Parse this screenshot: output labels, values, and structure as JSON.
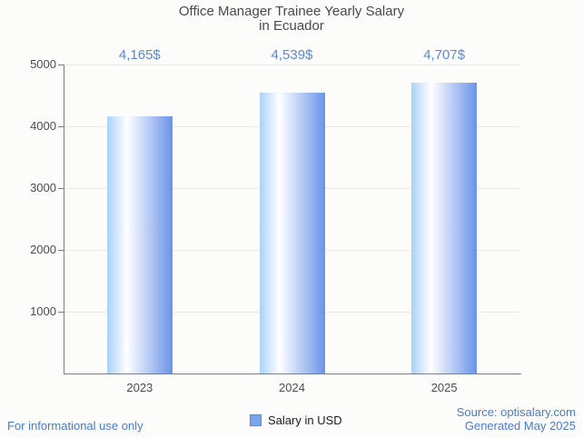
{
  "chart_data": {
    "type": "bar",
    "title": "Office Manager Trainee Yearly Salary in Ecuador",
    "title_lines": [
      "Office Manager Trainee Yearly Salary",
      "in Ecuador"
    ],
    "categories": [
      "2023",
      "2024",
      "2025"
    ],
    "values": [
      4165,
      4539,
      4707
    ],
    "value_labels": [
      "4,165$",
      "4,539$",
      "4,707$"
    ],
    "series_name": "Salary in USD",
    "xlabel": "",
    "ylabel": "",
    "ylim": [
      0,
      5000
    ],
    "yticks": [
      1000,
      2000,
      3000,
      4000,
      5000
    ],
    "grid": true,
    "legend_position": "bottom",
    "colors": {
      "bar_gradient_left": "#a9d2f8",
      "bar_gradient_mid": "#ffffff",
      "bar_gradient_right": "#6a93e8",
      "annotation_text": "#5b87d5",
      "legend_swatch_fill": "#7aa3ee",
      "legend_swatch_border": "#6185c5",
      "axis_line": "#7e7e7e",
      "gridline": "#e9e9e9"
    }
  },
  "legend": {
    "label": "Salary in USD"
  },
  "footer": {
    "disclaimer": "For informational use only",
    "source": "Source: optisalary.com",
    "generated": "Generated May 2025",
    "link_color": "#4a7bd0"
  }
}
